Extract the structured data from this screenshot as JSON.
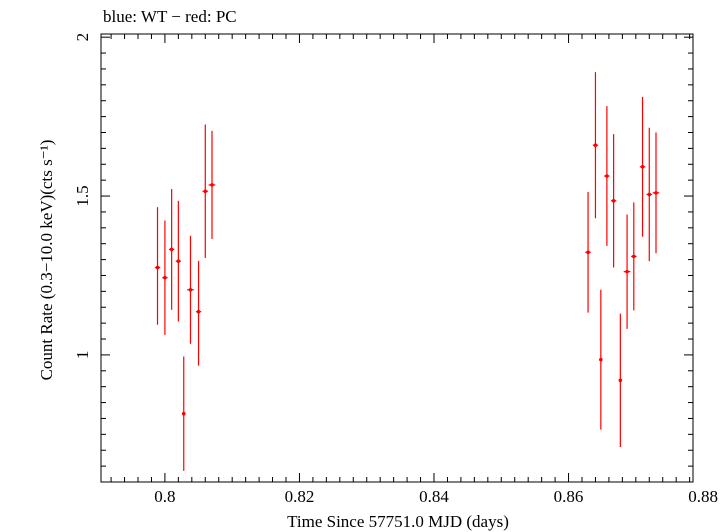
{
  "chart_data": {
    "type": "scatter",
    "title": "blue: WT − red: PC",
    "xlabel": "Time Since 57751.0 MJD (days)",
    "ylabel": "Count Rate (0.3−10.0 keV)(cts s⁻¹)",
    "xlim": [
      0.7905,
      0.8785
    ],
    "ylim": [
      0.6,
      2.01
    ],
    "xticks": [
      0.8,
      0.82,
      0.84,
      0.86,
      0.88
    ],
    "xtick_labels": [
      "0.8",
      "0.82",
      "0.84",
      "0.86",
      "0.88"
    ],
    "yticks": [
      1.0,
      1.5,
      2.0
    ],
    "ytick_labels": [
      "1",
      "1.5",
      "2"
    ],
    "grid": false,
    "series": [
      {
        "name": "PC",
        "color": "#ff0000",
        "points": [
          {
            "x": 0.7989,
            "y": 1.275,
            "yerr_lo": 0.18,
            "yerr_hi": 0.19,
            "xerr": 0.0004
          },
          {
            "x": 0.8,
            "y": 1.243,
            "yerr_lo": 0.18,
            "yerr_hi": 0.18,
            "xerr": 0.0004
          },
          {
            "x": 0.801,
            "y": 1.332,
            "yerr_lo": 0.19,
            "yerr_hi": 0.19,
            "xerr": 0.0004
          },
          {
            "x": 0.802,
            "y": 1.295,
            "yerr_lo": 0.19,
            "yerr_hi": 0.19,
            "xerr": 0.0004
          },
          {
            "x": 0.8028,
            "y": 0.815,
            "yerr_lo": 0.18,
            "yerr_hi": 0.18,
            "xerr": 0.0002
          },
          {
            "x": 0.8038,
            "y": 1.205,
            "yerr_lo": 0.17,
            "yerr_hi": 0.17,
            "xerr": 0.0005
          },
          {
            "x": 0.805,
            "y": 1.136,
            "yerr_lo": 0.17,
            "yerr_hi": 0.16,
            "xerr": 0.0004
          },
          {
            "x": 0.806,
            "y": 1.515,
            "yerr_lo": 0.21,
            "yerr_hi": 0.21,
            "xerr": 0.0004
          },
          {
            "x": 0.807,
            "y": 1.535,
            "yerr_lo": 0.17,
            "yerr_hi": 0.17,
            "xerr": 0.0005
          },
          {
            "x": 0.8629,
            "y": 1.323,
            "yerr_lo": 0.19,
            "yerr_hi": 0.19,
            "xerr": 0.0004
          },
          {
            "x": 0.864,
            "y": 1.66,
            "yerr_lo": 0.23,
            "yerr_hi": 0.23,
            "xerr": 0.0004
          },
          {
            "x": 0.8648,
            "y": 0.985,
            "yerr_lo": 0.22,
            "yerr_hi": 0.22,
            "xerr": 0.0002
          },
          {
            "x": 0.8657,
            "y": 1.563,
            "yerr_lo": 0.22,
            "yerr_hi": 0.22,
            "xerr": 0.0004
          },
          {
            "x": 0.8667,
            "y": 1.485,
            "yerr_lo": 0.21,
            "yerr_hi": 0.21,
            "xerr": 0.0004
          },
          {
            "x": 0.8677,
            "y": 0.92,
            "yerr_lo": 0.21,
            "yerr_hi": 0.21,
            "xerr": 0.0002
          },
          {
            "x": 0.8687,
            "y": 1.262,
            "yerr_lo": 0.18,
            "yerr_hi": 0.18,
            "xerr": 0.0005
          },
          {
            "x": 0.8697,
            "y": 1.31,
            "yerr_lo": 0.17,
            "yerr_hi": 0.17,
            "xerr": 0.0004
          },
          {
            "x": 0.871,
            "y": 1.592,
            "yerr_lo": 0.22,
            "yerr_hi": 0.22,
            "xerr": 0.0004
          },
          {
            "x": 0.872,
            "y": 1.505,
            "yerr_lo": 0.21,
            "yerr_hi": 0.21,
            "xerr": 0.0004
          },
          {
            "x": 0.873,
            "y": 1.51,
            "yerr_lo": 0.19,
            "yerr_hi": 0.19,
            "xerr": 0.0005
          }
        ]
      }
    ]
  }
}
